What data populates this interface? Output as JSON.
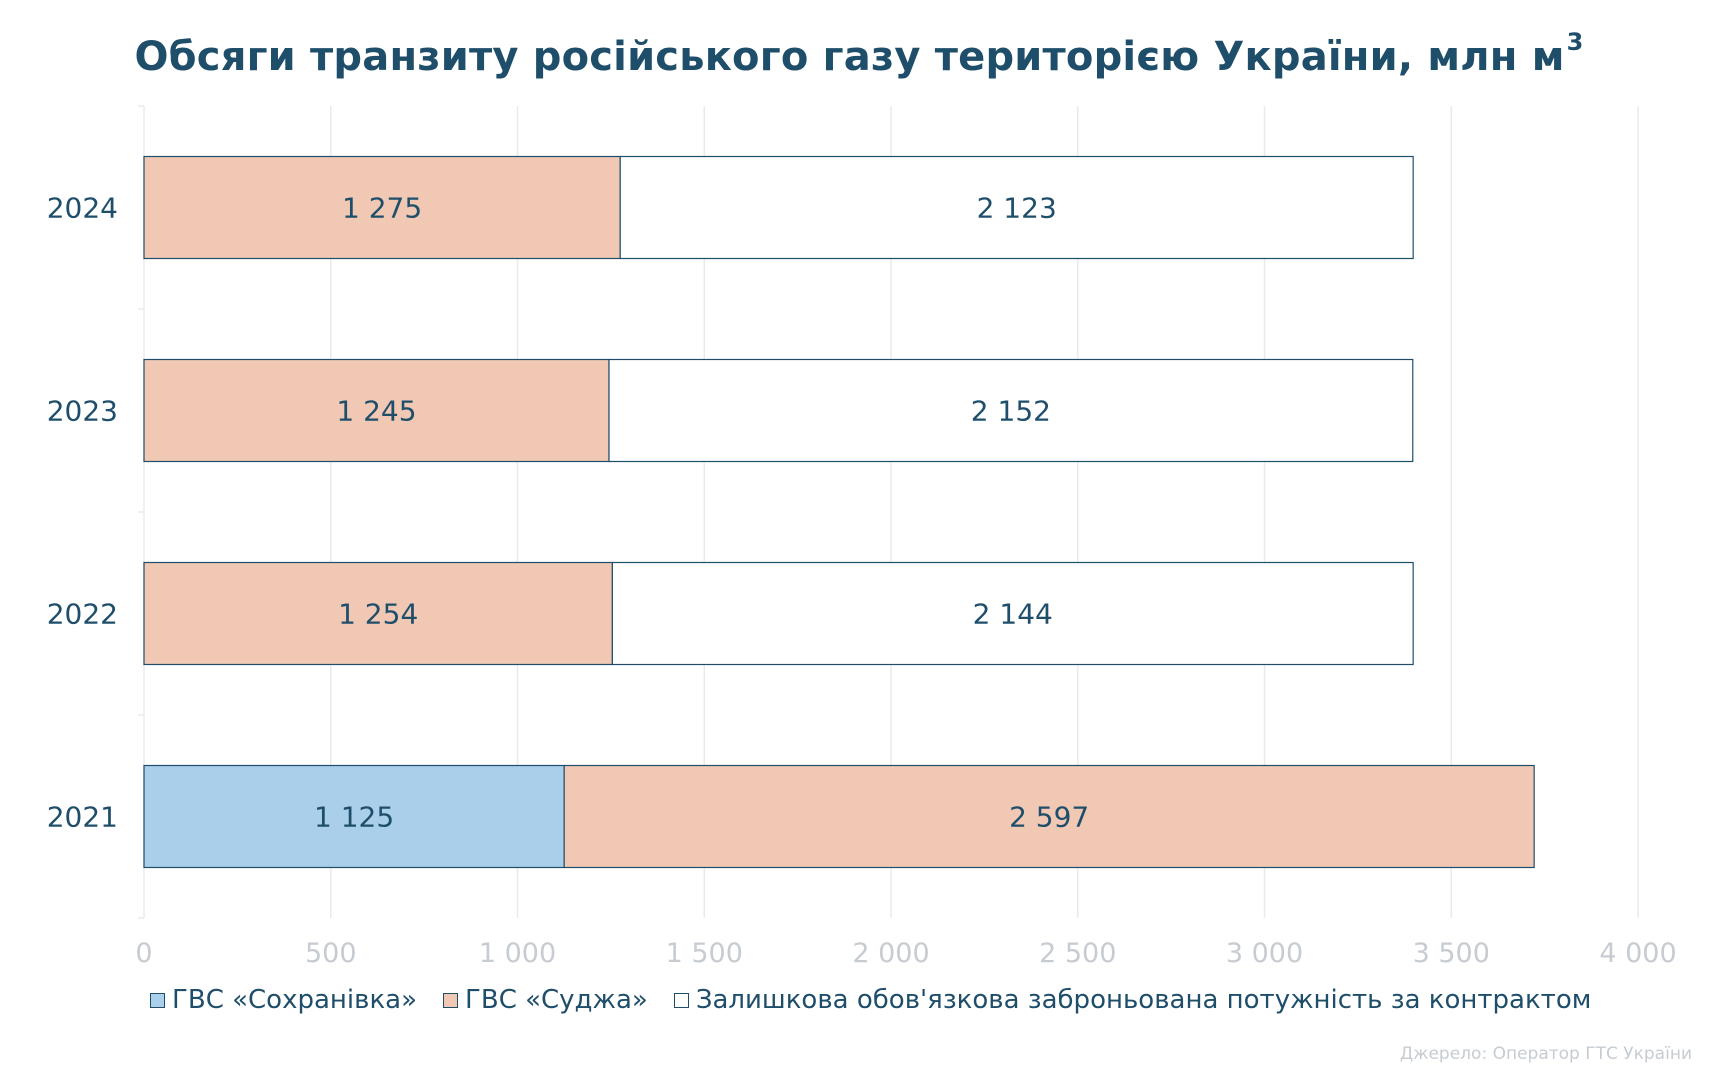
{
  "title": "Обсяги транзиту російського газу територією України, млн м",
  "title_superscript": "3",
  "source": "Джерело: Оператор ГТС України",
  "colors": {
    "sokhranivka": "#a9cfea",
    "sudzha": "#f0c8b3",
    "reserved": "#ffffff",
    "outline": "#1f4e6b",
    "text": "#1f4e6b",
    "axis_text": "#c6ccd2",
    "grid": "#e8ebee"
  },
  "legend": [
    {
      "label": "ГВС «Сохранівка»",
      "color": "#a9cfea"
    },
    {
      "label": "ГВС «Суджа»",
      "color": "#f0c8b3"
    },
    {
      "label": "Залишкова обов'язкова заброньована потужність за контрактом",
      "color": "#ffffff"
    }
  ],
  "chart_data": {
    "type": "bar",
    "orientation": "horizontal",
    "stacked": true,
    "title": "Обсяги транзиту російського газу територією України, млн м³",
    "xlabel": "",
    "ylabel": "",
    "categories": [
      "2024",
      "2023",
      "2022",
      "2021"
    ],
    "xlim": [
      0,
      4000
    ],
    "x_ticks": [
      0,
      500,
      1000,
      1500,
      2000,
      2500,
      3000,
      3500,
      4000
    ],
    "x_tick_labels": [
      "0",
      "500",
      "1 000",
      "1 500",
      "2 000",
      "2 500",
      "3 000",
      "3 500",
      "4 000"
    ],
    "grid": true,
    "legend_position": "bottom",
    "bars": [
      {
        "category": "2024",
        "segments": [
          {
            "series": "sudzha",
            "value": 1275,
            "label": "1 275"
          },
          {
            "series": "reserved",
            "value": 2123,
            "label": "2 123"
          }
        ]
      },
      {
        "category": "2023",
        "segments": [
          {
            "series": "sudzha",
            "value": 1245,
            "label": "1 245"
          },
          {
            "series": "reserved",
            "value": 2152,
            "label": "2 152"
          }
        ]
      },
      {
        "category": "2022",
        "segments": [
          {
            "series": "sudzha",
            "value": 1254,
            "label": "1 254"
          },
          {
            "series": "reserved",
            "value": 2144,
            "label": "2 144"
          }
        ]
      },
      {
        "category": "2021",
        "segments": [
          {
            "series": "sokhranivka",
            "value": 1125,
            "label": "1 125"
          },
          {
            "series": "sudzha",
            "value": 2597,
            "label": "2 597"
          }
        ]
      }
    ]
  }
}
